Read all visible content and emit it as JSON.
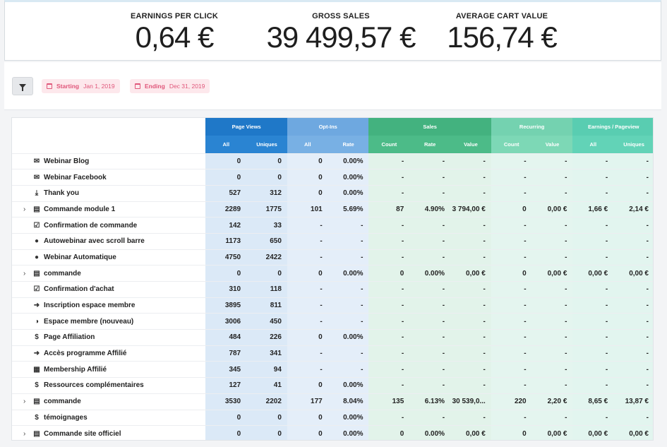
{
  "kpis": {
    "earnings_per_click": {
      "label": "EARNINGS PER CLICK",
      "value": "0,64 €"
    },
    "gross_sales": {
      "label": "GROSS SALES",
      "value": "39 499,57 €"
    },
    "average_cart_value": {
      "label": "AVERAGE CART VALUE",
      "value": "156,74 €"
    }
  },
  "filters": {
    "starting": {
      "label": "Starting",
      "value": "Jan 1, 2019"
    },
    "ending": {
      "label": "Ending",
      "value": "Dec 31, 2019"
    }
  },
  "table": {
    "groups": [
      "Page Views",
      "Opt-Ins",
      "Sales",
      "Recurring",
      "Earnings / Pageview"
    ],
    "subheaders": [
      "All",
      "Uniques",
      "All",
      "Rate",
      "Count",
      "Rate",
      "Value",
      "Count",
      "Value",
      "All",
      "Uniques"
    ],
    "rows": [
      {
        "name": "Webinar Blog",
        "icon": "envelope-icon",
        "expandable": false,
        "cells": [
          "0",
          "0",
          "0",
          "0.00%",
          "-",
          "-",
          "-",
          "-",
          "-",
          "-",
          "-"
        ]
      },
      {
        "name": "Webinar Facebook",
        "icon": "envelope-icon",
        "expandable": false,
        "cells": [
          "0",
          "0",
          "0",
          "0.00%",
          "-",
          "-",
          "-",
          "-",
          "-",
          "-",
          "-"
        ]
      },
      {
        "name": "Thank you",
        "icon": "download-icon",
        "expandable": false,
        "cells": [
          "527",
          "312",
          "0",
          "0.00%",
          "-",
          "-",
          "-",
          "-",
          "-",
          "-",
          "-"
        ]
      },
      {
        "name": "Commande module 1",
        "icon": "cart-icon",
        "expandable": true,
        "cells": [
          "2289",
          "1775",
          "101",
          "5.69%",
          "87",
          "4.90%",
          "3 794,00 €",
          "0",
          "0,00 €",
          "1,66 €",
          "2,14 €"
        ]
      },
      {
        "name": "Confirmation de commande",
        "icon": "checkbox-icon",
        "expandable": false,
        "cells": [
          "142",
          "33",
          "-",
          "-",
          "-",
          "-",
          "-",
          "-",
          "-",
          "-",
          "-"
        ]
      },
      {
        "name": "Autowebinar avec scroll barre",
        "icon": "microphone-icon",
        "expandable": false,
        "cells": [
          "1173",
          "650",
          "-",
          "-",
          "-",
          "-",
          "-",
          "-",
          "-",
          "-",
          "-"
        ]
      },
      {
        "name": "Webinar Automatique",
        "icon": "microphone-icon",
        "expandable": false,
        "cells": [
          "4750",
          "2422",
          "-",
          "-",
          "-",
          "-",
          "-",
          "-",
          "-",
          "-",
          "-"
        ]
      },
      {
        "name": "commande",
        "icon": "cart-icon",
        "expandable": true,
        "cells": [
          "0",
          "0",
          "0",
          "0.00%",
          "0",
          "0.00%",
          "0,00 €",
          "0",
          "0,00 €",
          "0,00 €",
          "0,00 €"
        ]
      },
      {
        "name": "Confirmation d'achat",
        "icon": "checkbox-icon",
        "expandable": false,
        "cells": [
          "310",
          "118",
          "-",
          "-",
          "-",
          "-",
          "-",
          "-",
          "-",
          "-",
          "-"
        ]
      },
      {
        "name": "Inscription espace membre",
        "icon": "sign-in-icon",
        "expandable": false,
        "cells": [
          "3895",
          "811",
          "-",
          "-",
          "-",
          "-",
          "-",
          "-",
          "-",
          "-",
          "-"
        ]
      },
      {
        "name": "Espace membre (nouveau)",
        "icon": "dashboard-icon",
        "expandable": false,
        "cells": [
          "3006",
          "450",
          "-",
          "-",
          "-",
          "-",
          "-",
          "-",
          "-",
          "-",
          "-"
        ]
      },
      {
        "name": "Page Affiliation",
        "icon": "dollar-icon",
        "expandable": false,
        "cells": [
          "484",
          "226",
          "0",
          "0.00%",
          "-",
          "-",
          "-",
          "-",
          "-",
          "-",
          "-"
        ]
      },
      {
        "name": "Accès programme Affilié",
        "icon": "sign-in-icon",
        "expandable": false,
        "cells": [
          "787",
          "341",
          "-",
          "-",
          "-",
          "-",
          "-",
          "-",
          "-",
          "-",
          "-"
        ]
      },
      {
        "name": "Membership Affilié",
        "icon": "calendar-icon",
        "expandable": false,
        "cells": [
          "345",
          "94",
          "-",
          "-",
          "-",
          "-",
          "-",
          "-",
          "-",
          "-",
          "-"
        ]
      },
      {
        "name": "Ressources complémentaires",
        "icon": "dollar-icon",
        "expandable": false,
        "cells": [
          "127",
          "41",
          "0",
          "0.00%",
          "-",
          "-",
          "-",
          "-",
          "-",
          "-",
          "-"
        ]
      },
      {
        "name": "commande",
        "icon": "cart-icon",
        "expandable": true,
        "cells": [
          "3530",
          "2202",
          "177",
          "8.04%",
          "135",
          "6.13%",
          "30 539,0...",
          "220",
          "2,20 €",
          "8,65 €",
          "13,87 €"
        ]
      },
      {
        "name": "témoignages",
        "icon": "dollar-icon",
        "expandable": false,
        "cells": [
          "0",
          "0",
          "0",
          "0.00%",
          "-",
          "-",
          "-",
          "-",
          "-",
          "-",
          "-"
        ]
      },
      {
        "name": "Commande site officiel",
        "icon": "cart-icon",
        "expandable": true,
        "cells": [
          "0",
          "0",
          "0",
          "0.00%",
          "0",
          "0.00%",
          "0,00 €",
          "0",
          "0,00 €",
          "0,00 €",
          "0,00 €"
        ]
      }
    ]
  },
  "colors": {
    "page_views": "#1f78c8",
    "opt_ins": "#6ea8e0",
    "sales": "#43b27f",
    "recurring": "#74d2b0",
    "earnings_per_pageview": "#59cdb1",
    "link": "#3b8bd0",
    "date_chip_text": "#e0567a"
  }
}
